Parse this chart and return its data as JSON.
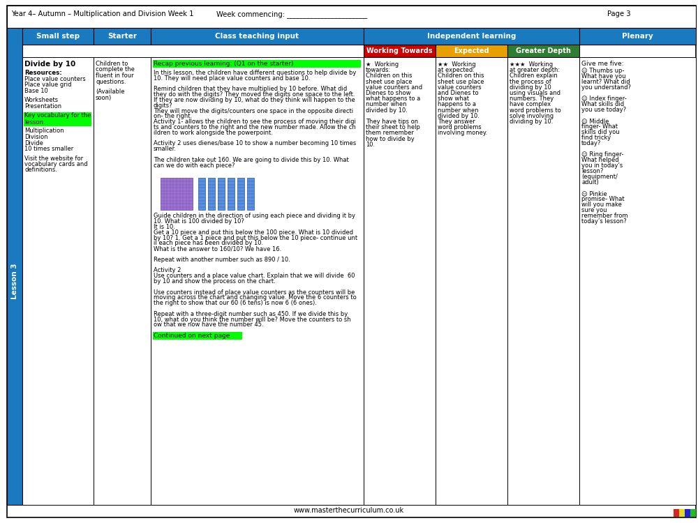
{
  "header_title": "Year 4– Autumn – Multiplication and Division Week 1",
  "header_week": "Week commencing: _______________________",
  "header_page": "Page 3",
  "col_headers": [
    "Small step",
    "Starter",
    "Class teaching input",
    "Independent learning",
    "Plenary"
  ],
  "independent_sub_headers": [
    "Working Towards",
    "Expected",
    "Greater Depth"
  ],
  "independent_sub_colors": [
    "#cc0000",
    "#e8a000",
    "#2e7d32"
  ],
  "header_bg": "#1a7abf",
  "lesson_label": "Lesson 3",
  "lesson_bg": "#1a7abf",
  "footer_text": "www.masterthecurriculum.co.uk",
  "bg_color": "#ffffff",
  "stripe_colors": [
    "#dd2222",
    "#dddd22",
    "#2222dd",
    "#22bb22"
  ]
}
